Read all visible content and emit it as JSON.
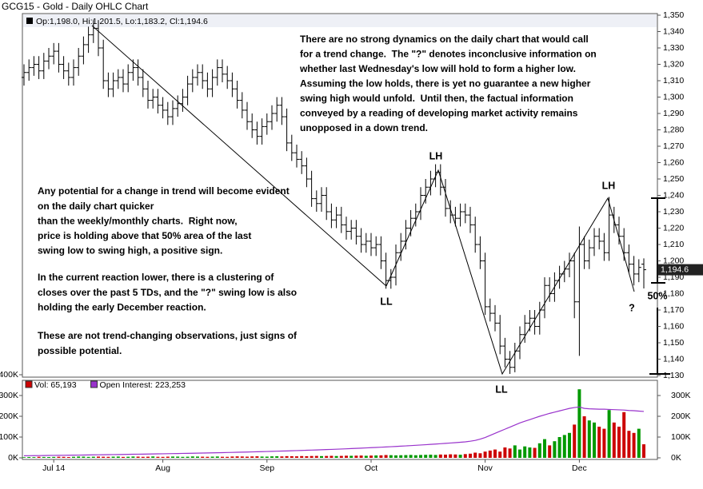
{
  "chart_data": {
    "type": "ohlc",
    "title": "GCG15 - Gold - Daily OHLC Chart",
    "legend": "Op:1,198.0, Hi:1,201.5, Lo:1,183.2, Cl:1,194.6",
    "categories": [
      null,
      null,
      null,
      null,
      null,
      null,
      "Jul 14",
      null,
      null,
      null,
      null,
      null,
      null,
      null,
      null,
      null,
      null,
      null,
      null,
      null,
      null,
      null,
      null,
      null,
      null,
      null,
      null,
      null,
      "Aug",
      null,
      null,
      null,
      null,
      null,
      null,
      null,
      null,
      null,
      null,
      null,
      null,
      null,
      null,
      null,
      null,
      null,
      null,
      null,
      null,
      "Sep",
      null,
      null,
      null,
      null,
      null,
      null,
      null,
      null,
      null,
      null,
      null,
      null,
      null,
      null,
      null,
      null,
      null,
      null,
      null,
      null,
      "Oct",
      null,
      null,
      null,
      null,
      null,
      null,
      null,
      null,
      null,
      null,
      null,
      null,
      null,
      null,
      null,
      null,
      null,
      null,
      null,
      null,
      null,
      null,
      "Nov",
      null,
      null,
      null,
      null,
      null,
      null,
      null,
      null,
      null,
      null,
      null,
      null,
      null,
      null,
      null,
      null,
      null,
      null,
      "Dec",
      null,
      null,
      null,
      null,
      null,
      null,
      null,
      null,
      null,
      null,
      null,
      null,
      null
    ],
    "open": [
      1312,
      1315,
      1318,
      1320,
      1316,
      1322,
      1325,
      1328,
      1320,
      1316,
      1312,
      1318,
      1325,
      1332,
      1338,
      1342,
      1330,
      1310,
      1305,
      1310,
      1312,
      1308,
      1315,
      1318,
      1312,
      1305,
      1298,
      1300,
      1295,
      1292,
      1288,
      1293,
      1296,
      1300,
      1308,
      1312,
      1315,
      1310,
      1305,
      1312,
      1318,
      1314,
      1310,
      1305,
      1298,
      1292,
      1285,
      1280,
      1276,
      1282,
      1285,
      1290,
      1295,
      1288,
      1272,
      1266,
      1262,
      1258,
      1250,
      1238,
      1235,
      1240,
      1230,
      1225,
      1228,
      1222,
      1218,
      1220,
      1215,
      1210,
      1212,
      1208,
      1210,
      1200,
      1188,
      1190,
      1205,
      1212,
      1220,
      1226,
      1230,
      1240,
      1245,
      1250,
      1254,
      1245,
      1232,
      1228,
      1226,
      1230,
      1228,
      1222,
      1210,
      1200,
      1172,
      1168,
      1162,
      1148,
      1140,
      1135,
      1145,
      1155,
      1162,
      1165,
      1160,
      1170,
      1185,
      1180,
      1188,
      1192,
      1195,
      1200,
      1175,
      1210,
      1200,
      1208,
      1215,
      1212,
      1205,
      1228,
      1222,
      1215,
      1205,
      1198,
      1192,
      1198.0
    ],
    "high": [
      1320,
      1323,
      1325,
      1325,
      1327,
      1330,
      1333,
      1333,
      1325,
      1321,
      1323,
      1330,
      1337,
      1343,
      1347,
      1347,
      1335,
      1315,
      1315,
      1317,
      1317,
      1320,
      1323,
      1323,
      1317,
      1310,
      1305,
      1305,
      1300,
      1297,
      1298,
      1301,
      1305,
      1313,
      1317,
      1320,
      1320,
      1315,
      1317,
      1323,
      1323,
      1319,
      1315,
      1310,
      1303,
      1297,
      1290,
      1285,
      1287,
      1290,
      1295,
      1300,
      1300,
      1293,
      1277,
      1271,
      1267,
      1263,
      1255,
      1243,
      1245,
      1245,
      1235,
      1233,
      1233,
      1227,
      1225,
      1225,
      1220,
      1217,
      1217,
      1215,
      1215,
      1205,
      1195,
      1210,
      1217,
      1225,
      1231,
      1235,
      1245,
      1250,
      1255,
      1259,
      1259,
      1250,
      1237,
      1233,
      1235,
      1235,
      1233,
      1227,
      1215,
      1205,
      1177,
      1173,
      1167,
      1153,
      1145,
      1150,
      1160,
      1167,
      1170,
      1170,
      1175,
      1190,
      1190,
      1193,
      1197,
      1200,
      1205,
      1205,
      1221,
      1215,
      1213,
      1220,
      1220,
      1217,
      1239,
      1233,
      1227,
      1220,
      1210,
      1203,
      1201,
      1201.5
    ],
    "low": [
      1307,
      1310,
      1313,
      1311,
      1311,
      1317,
      1320,
      1315,
      1311,
      1307,
      1307,
      1313,
      1320,
      1327,
      1333,
      1325,
      1305,
      1300,
      1300,
      1305,
      1303,
      1303,
      1310,
      1307,
      1300,
      1293,
      1293,
      1290,
      1287,
      1283,
      1283,
      1288,
      1291,
      1295,
      1303,
      1307,
      1305,
      1300,
      1300,
      1307,
      1309,
      1305,
      1300,
      1293,
      1287,
      1280,
      1275,
      1271,
      1271,
      1277,
      1280,
      1285,
      1283,
      1267,
      1261,
      1257,
      1253,
      1245,
      1233,
      1230,
      1230,
      1225,
      1220,
      1220,
      1217,
      1213,
      1213,
      1210,
      1205,
      1205,
      1203,
      1203,
      1195,
      1183,
      1183,
      1185,
      1200,
      1207,
      1215,
      1221,
      1225,
      1235,
      1240,
      1245,
      1240,
      1227,
      1223,
      1221,
      1221,
      1223,
      1217,
      1205,
      1195,
      1167,
      1163,
      1157,
      1143,
      1135,
      1131,
      1132,
      1140,
      1150,
      1157,
      1155,
      1155,
      1165,
      1175,
      1175,
      1183,
      1187,
      1190,
      1165,
      1142,
      1195,
      1195,
      1203,
      1207,
      1200,
      1200,
      1217,
      1210,
      1200,
      1193,
      1185,
      1187,
      1183.2
    ],
    "close": [
      1315,
      1318,
      1320,
      1316,
      1322,
      1325,
      1328,
      1320,
      1316,
      1312,
      1318,
      1325,
      1332,
      1338,
      1342,
      1330,
      1310,
      1305,
      1310,
      1312,
      1308,
      1315,
      1318,
      1312,
      1305,
      1298,
      1300,
      1295,
      1292,
      1288,
      1293,
      1296,
      1300,
      1308,
      1312,
      1315,
      1310,
      1305,
      1312,
      1318,
      1314,
      1310,
      1305,
      1298,
      1292,
      1285,
      1280,
      1276,
      1282,
      1285,
      1290,
      1295,
      1288,
      1272,
      1266,
      1262,
      1258,
      1250,
      1238,
      1235,
      1240,
      1230,
      1225,
      1228,
      1222,
      1218,
      1220,
      1215,
      1210,
      1212,
      1208,
      1210,
      1200,
      1188,
      1190,
      1205,
      1212,
      1220,
      1226,
      1230,
      1240,
      1245,
      1250,
      1254,
      1245,
      1232,
      1228,
      1226,
      1230,
      1228,
      1222,
      1210,
      1200,
      1172,
      1168,
      1162,
      1148,
      1140,
      1135,
      1145,
      1155,
      1162,
      1165,
      1160,
      1170,
      1185,
      1180,
      1188,
      1192,
      1195,
      1200,
      1175,
      1210,
      1200,
      1208,
      1215,
      1212,
      1205,
      1228,
      1222,
      1215,
      1205,
      1198,
      1192,
      1196,
      1194.6
    ],
    "color": "#000000",
    "ylim": [
      1130,
      1350
    ],
    "yticks": [
      {
        "value": 1130,
        "label": "1,130"
      },
      {
        "value": 1140,
        "label": "1,140"
      },
      {
        "value": 1150,
        "label": "1,150"
      },
      {
        "value": 1160,
        "label": "1,160"
      },
      {
        "value": 1170,
        "label": "1,170"
      },
      {
        "value": 1180,
        "label": "1,180"
      },
      {
        "value": 1190,
        "label": "1,190"
      },
      {
        "value": 1200,
        "label": "1,200"
      },
      {
        "value": 1210,
        "label": "1,210"
      },
      {
        "value": 1220,
        "label": "1,220"
      },
      {
        "value": 1230,
        "label": "1,230"
      },
      {
        "value": 1240,
        "label": "1,240"
      },
      {
        "value": 1250,
        "label": "1,250"
      },
      {
        "value": 1260,
        "label": "1,260"
      },
      {
        "value": 1270,
        "label": "1,270"
      },
      {
        "value": 1280,
        "label": "1,280"
      },
      {
        "value": 1290,
        "label": "1,290"
      },
      {
        "value": 1300,
        "label": "1,300"
      },
      {
        "value": 1310,
        "label": "1,310"
      },
      {
        "value": 1320,
        "label": "1,320"
      },
      {
        "value": 1330,
        "label": "1,330"
      },
      {
        "value": 1340,
        "label": "1,340"
      },
      {
        "value": 1350,
        "label": "1,350"
      }
    ],
    "last_price": {
      "value": 1194.6,
      "label": "1,194.6"
    },
    "annotations": [
      {
        "lines": [
          "There are no strong dynamics on the daily chart that would call",
          "for a trend change.  The \"?\" denotes inconclusive information on",
          "whether last Wednesday's low will hold to form a higher low.",
          "Assuming the low holds, there is yet no guarantee a new higher",
          "swing high would unfold.  Until then, the factual information",
          "conveyed by a reading of developing market activity remains",
          "unopposed in a down trend."
        ]
      },
      {
        "lines": [
          "Any potential for a change in trend will become evident",
          "on the daily chart quicker",
          "than the weekly/monthly charts.  Right now,",
          "price is holding above that 50% area of the last",
          "swing low to swing high, a positive sign."
        ]
      },
      {
        "lines": [
          "In the current reaction lower, there is a clustering of",
          "closes over the past 5 TDs, and the \"?\" swing low is also",
          "holding the early December reaction."
        ]
      },
      {
        "lines": [
          "These are not trend-changing observations, just signs of",
          "possible potential."
        ]
      }
    ],
    "labels": [
      "LH",
      "LH",
      "LL",
      "LL",
      "?",
      "50%"
    ],
    "volume_panel": {
      "series": [
        {
          "name": "Vol: 65,193",
          "color": "#cc0000",
          "up_color": "#009900",
          "values": [
            3000,
            4000,
            3500,
            5000,
            4200,
            3800,
            4500,
            5200,
            4800,
            3900,
            5100,
            6200,
            5800,
            4700,
            5500,
            6000,
            5300,
            4900,
            5700,
            6100,
            4500,
            5200,
            6300,
            5800,
            4900,
            5400,
            6600,
            5100,
            4700,
            5600,
            6200,
            5900,
            4800,
            5300,
            6700,
            6100,
            5500,
            5000,
            5800,
            6400,
            5200,
            4900,
            6300,
            7000,
            6500,
            5700,
            6800,
            7400,
            6200,
            5900,
            7100,
            7600,
            6900,
            8200,
            7800,
            7300,
            8500,
            7900,
            8800,
            9200,
            8400,
            9000,
            9600,
            8700,
            9300,
            10200,
            9800,
            10500,
            11000,
            9900,
            10800,
            11500,
            12000,
            13500,
            12800,
            11900,
            12600,
            13200,
            14000,
            12500,
            13800,
            14500,
            15200,
            13900,
            16000,
            15500,
            17000,
            16200,
            15000,
            18000,
            20000,
            25000,
            22000,
            30000,
            35000,
            40000,
            30000,
            50000,
            45000,
            60000,
            40000,
            55000,
            50000,
            48000,
            70000,
            90000,
            60000,
            80000,
            100000,
            110000,
            120000,
            160000,
            330000,
            200000,
            180000,
            170000,
            150000,
            140000,
            230000,
            170000,
            150000,
            220000,
            130000,
            120000,
            140000,
            65193
          ]
        },
        {
          "name": "Open Interest: 223,253",
          "color": "#9933cc",
          "axis": "y2",
          "values": [
            10000,
            10300,
            10500,
            10800,
            11000,
            11400,
            11700,
            12000,
            12300,
            12600,
            13000,
            13300,
            13600,
            14000,
            14300,
            14600,
            15000,
            15300,
            15700,
            16000,
            16400,
            16800,
            17200,
            17500,
            17900,
            18300,
            18700,
            19100,
            19500,
            20000,
            20400,
            20800,
            21300,
            21700,
            22200,
            22600,
            23100,
            23600,
            24100,
            24600,
            25100,
            25700,
            26200,
            26800,
            27400,
            28000,
            28600,
            29200,
            29900,
            30500,
            31200,
            31900,
            32600,
            33300,
            34000,
            34800,
            35600,
            36400,
            37200,
            38000,
            38900,
            39800,
            40700,
            41600,
            42600,
            43600,
            44600,
            45600,
            46700,
            47800,
            48900,
            50000,
            51200,
            52400,
            53600,
            54900,
            56200,
            57500,
            58900,
            60300,
            61800,
            63300,
            64800,
            66400,
            68000,
            69700,
            71400,
            73200,
            75000,
            77000,
            80000,
            84000,
            90000,
            98000,
            108000,
            118000,
            128000,
            138000,
            148000,
            158000,
            168000,
            176000,
            184000,
            192000,
            200000,
            207000,
            214000,
            220000,
            226000,
            232000,
            238000,
            242000,
            245000,
            238000,
            236000,
            235000,
            234000,
            234000,
            233000,
            232000,
            231000,
            230000,
            228000,
            227000,
            225000,
            223253
          ]
        }
      ],
      "ylim": [
        0,
        400000
      ],
      "yticks": [
        {
          "value": 0,
          "label": "0K"
        },
        {
          "value": 100000,
          "label": "100K"
        },
        {
          "value": 200000,
          "label": "200K"
        },
        {
          "value": 300000,
          "label": "300K"
        },
        {
          "value": 400000,
          "label": "400K"
        }
      ],
      "y2lim": [
        0,
        400000
      ],
      "y2ticks": [
        {
          "value": 0,
          "label": "0K"
        },
        {
          "value": 100000,
          "label": "100K"
        },
        {
          "value": 200000,
          "label": "200K"
        },
        {
          "value": 300000,
          "label": "300K"
        }
      ]
    }
  }
}
